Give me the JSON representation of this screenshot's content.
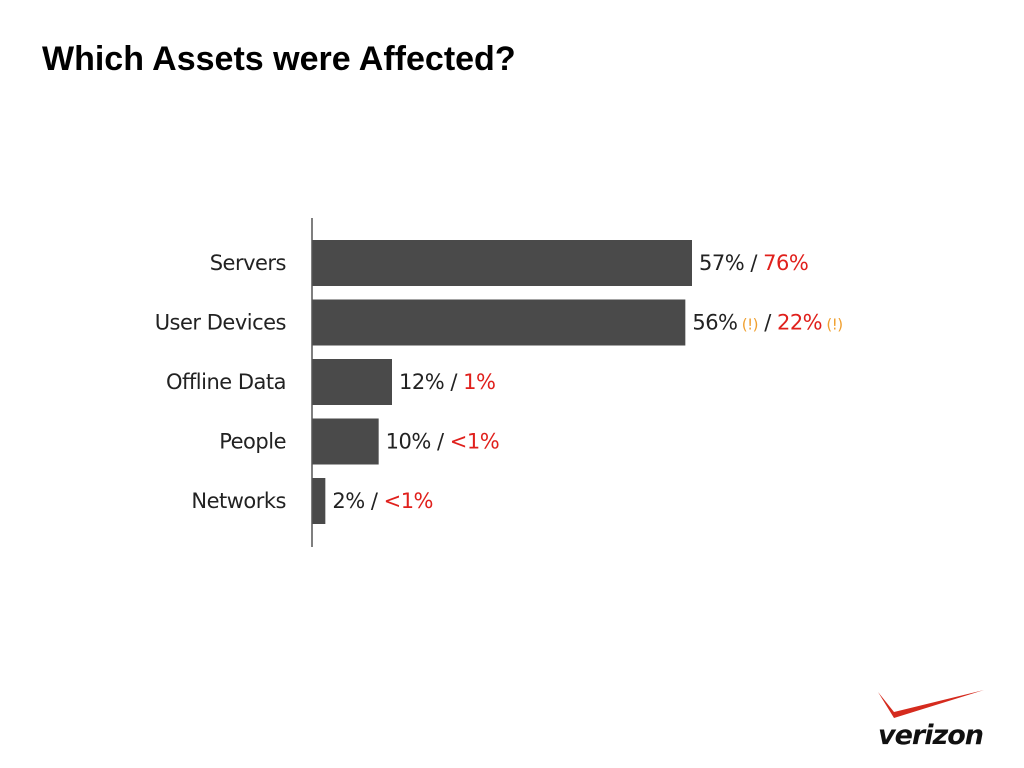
{
  "slide": {
    "title": "Which Assets were Affected?"
  },
  "chart_data": {
    "type": "bar",
    "orientation": "horizontal",
    "categories": [
      "Servers",
      "User Devices",
      "Offline Data",
      "People",
      "Networks"
    ],
    "series": [
      {
        "name": "",
        "values": [
          57,
          56,
          12,
          10,
          2
        ]
      }
    ],
    "data_labels": [
      {
        "primary": "57%",
        "secondary": "76%",
        "primary_flag": "",
        "secondary_flag": ""
      },
      {
        "primary": "56%",
        "secondary": "22%",
        "primary_flag": "(!)",
        "secondary_flag": "(!)"
      },
      {
        "primary": "12%",
        "secondary": "1%",
        "primary_flag": "",
        "secondary_flag": ""
      },
      {
        "primary": "10%",
        "secondary": "<1%",
        "primary_flag": "",
        "secondary_flag": ""
      },
      {
        "primary": "2%",
        "secondary": "<1%",
        "primary_flag": "",
        "secondary_flag": ""
      }
    ],
    "separator": "/",
    "xlim": [
      0,
      57
    ],
    "grid": false,
    "legend": "none",
    "colors": {
      "bar": "#4a4a4a",
      "axis": "#555555",
      "primary_text": "#222222",
      "secondary_text": "#e0201c",
      "flag": "#f0a030"
    }
  },
  "logo": {
    "text": "verizon",
    "check_color": "#d52b1e"
  }
}
